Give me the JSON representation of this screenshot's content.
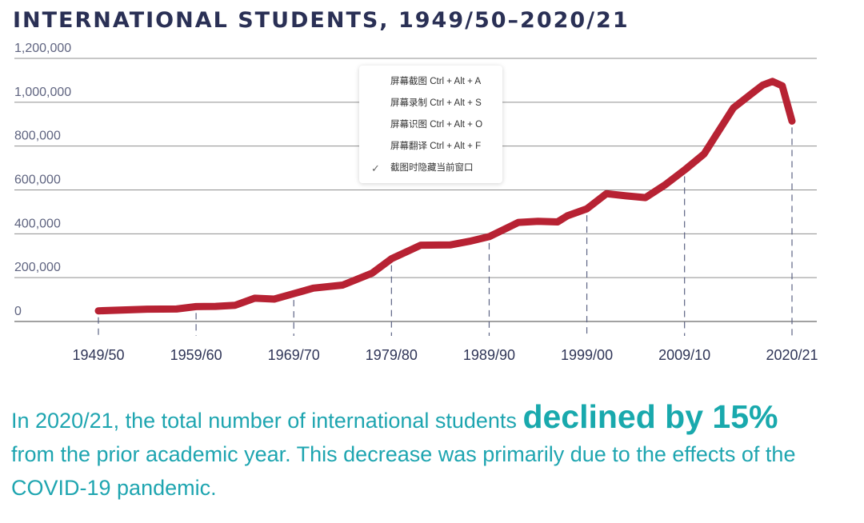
{
  "title": "INTERNATIONAL STUDENTS, 1949/50–2020/21",
  "chart_data": {
    "type": "line",
    "title": "INTERNATIONAL STUDENTS, 1949/50–2020/21",
    "xlabel": "",
    "ylabel": "",
    "ylim": [
      0,
      1200000
    ],
    "yticks": [
      "0",
      "200,000",
      "400,000",
      "600,000",
      "800,000",
      "1,000,000",
      "1,200,000"
    ],
    "xticks": [
      "1949/50",
      "1959/60",
      "1969/70",
      "1979/80",
      "1989/90",
      "1999/00",
      "2009/10",
      "2020/21"
    ],
    "grid": true,
    "line_color": "#b72233",
    "series": [
      {
        "name": "",
        "x": [
          1949,
          1954,
          1957,
          1959,
          1961,
          1963,
          1965,
          1967,
          1969,
          1971,
          1974,
          1977,
          1979,
          1982,
          1985,
          1987,
          1989,
          1992,
          1994,
          1996,
          1997,
          1999,
          2001,
          2003,
          2005,
          2007,
          2009,
          2011,
          2014,
          2016,
          2017,
          2018,
          2019,
          2020
        ],
        "values": [
          48500,
          56000,
          57000,
          68000,
          69000,
          74000,
          106000,
          102000,
          127000,
          152000,
          166000,
          220000,
          286000,
          348000,
          349000,
          366000,
          387000,
          452000,
          457000,
          454000,
          482000,
          514000,
          583000,
          573000,
          565000,
          623000,
          691000,
          764000,
          974000,
          1044000,
          1078000,
          1095000,
          1075000,
          914000
        ]
      }
    ]
  },
  "context_menu": {
    "items": [
      {
        "label": "屏幕截图 Ctrl + Alt + A"
      },
      {
        "label": "屏幕录制 Ctrl + Alt + S"
      },
      {
        "label": "屏幕识图 Ctrl + Alt + O"
      },
      {
        "label": "屏幕翻译 Ctrl + Alt + F"
      },
      {
        "label": "截图时隐藏当前窗口",
        "checked": true
      }
    ]
  },
  "caption": {
    "before": "In 2020/21, the total number of international students ",
    "emphasis": "declined by 15%",
    "after": "from the prior academic year. This decrease was primarily due to the effects of the COVID-19 pandemic."
  },
  "colors": {
    "title": "#2a3055",
    "line": "#b72233",
    "caption": "#1ea5b0",
    "caption_emphasis": "#19a9ad"
  }
}
